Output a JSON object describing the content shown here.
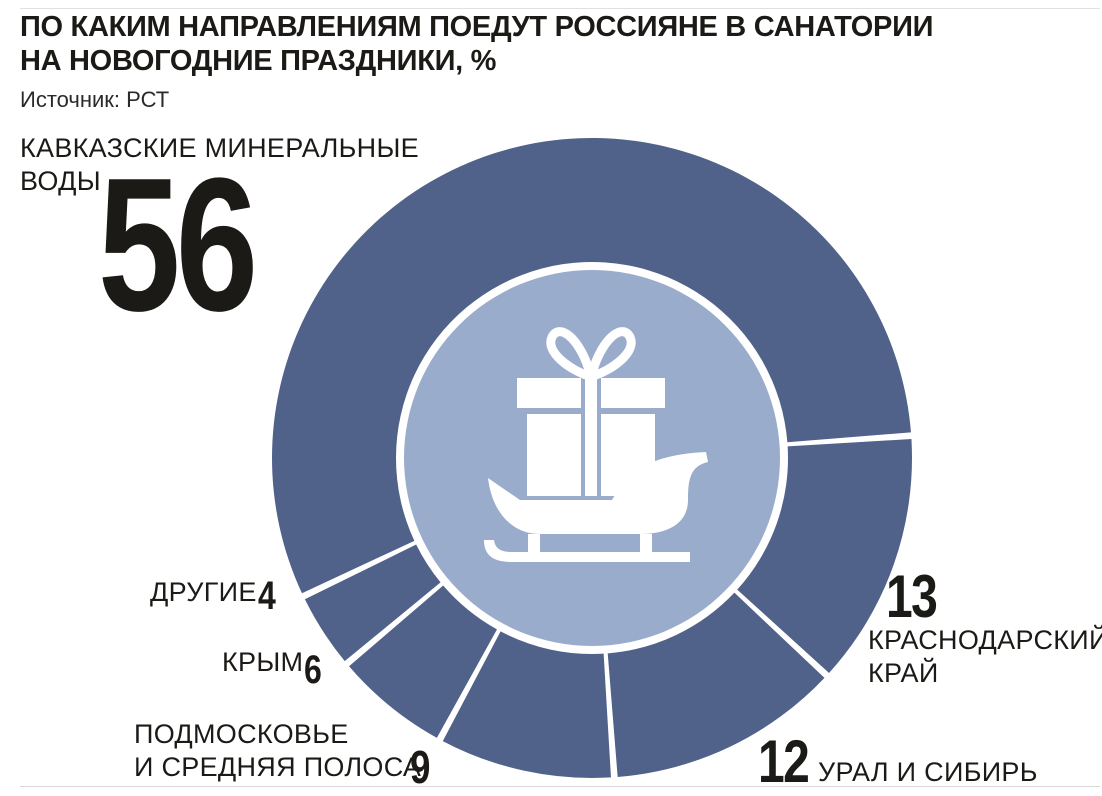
{
  "title": {
    "line1": "ПО КАКИМ НАПРАВЛЕНИЯМ ПОЕДУТ РОССИЯНЕ В САНАТОРИИ",
    "line2": "НА НОВОГОДНИЕ ПРАЗДНИКИ, %"
  },
  "source": "Источник: РСТ",
  "labels": {
    "kmv_line1": "КАВКАЗСКИЕ МИНЕРАЛЬНЫЕ",
    "kmv_line2": "ВОДЫ",
    "kmv_value": "56",
    "krasnodar_value": "13",
    "krasnodar_line1": "КРАСНОДАРСКИЙ",
    "krasnodar_line2": "КРАЙ",
    "ural_value": "12",
    "ural_label": "УРАЛ И СИБИРЬ",
    "podmoskovie_line1": "ПОДМОСКОВЬЕ",
    "podmoskovie_line2": "И СРЕДНЯЯ ПОЛОСА",
    "podmoskovie_value": "9",
    "krym_label": "КРЫМ",
    "krym_value": "6",
    "drugie_label": "ДРУГИЕ",
    "drugie_value": "4"
  },
  "colors": {
    "ring": "#51628a",
    "inner": "#9aaccb",
    "icon": "#ffffff",
    "text": "#1c1a16"
  },
  "icon": "sleigh-with-gift-icon",
  "chart_data": {
    "type": "pie",
    "title": "ПО КАКИМ НАПРАВЛЕНИЯМ ПОЕДУТ РОССИЯНЕ В САНАТОРИИ НА НОВОГОДНИЕ ПРАЗДНИКИ, %",
    "categories": [
      "КАВКАЗСКИЕ МИНЕРАЛЬНЫЕ ВОДЫ",
      "КРАСНОДАРСКИЙ КРАЙ",
      "УРАЛ И СИБИРЬ",
      "ПОДМОСКОВЬЕ И СРЕДНЯЯ ПОЛОСА",
      "КРЫМ",
      "ДРУГИЕ"
    ],
    "values": [
      56,
      13,
      12,
      9,
      6,
      4
    ],
    "donut": true,
    "legend": "none"
  }
}
